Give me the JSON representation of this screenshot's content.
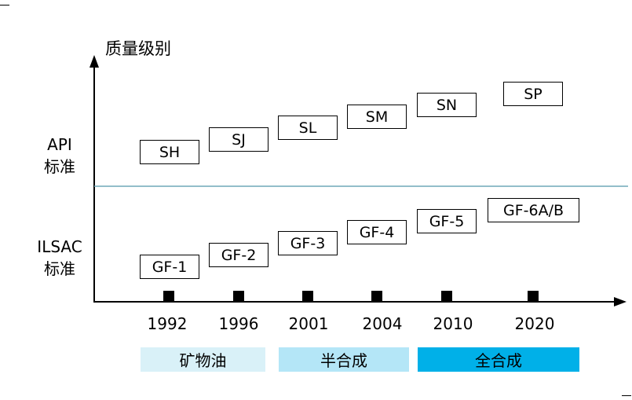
{
  "y_axis_title": "质量级别",
  "side_labels": {
    "api": [
      "API",
      "标准"
    ],
    "ilsac": [
      "ILSAC",
      "标准"
    ]
  },
  "api_grades": [
    "SH",
    "SJ",
    "SL",
    "SM",
    "SN",
    "SP"
  ],
  "ilsac_grades": [
    "GF-1",
    "GF-2",
    "GF-3",
    "GF-4",
    "GF-5",
    "GF-6A/B"
  ],
  "years": [
    "1992",
    "1996",
    "2001",
    "2004",
    "2010",
    "2020"
  ],
  "bands": [
    {
      "label": "矿物油",
      "color": "#d9f1f8"
    },
    {
      "label": "半合成",
      "color": "#b4e6f7"
    },
    {
      "label": "全合成",
      "color": "#00b0e8"
    }
  ],
  "divider_color": "#6fa8b8"
}
